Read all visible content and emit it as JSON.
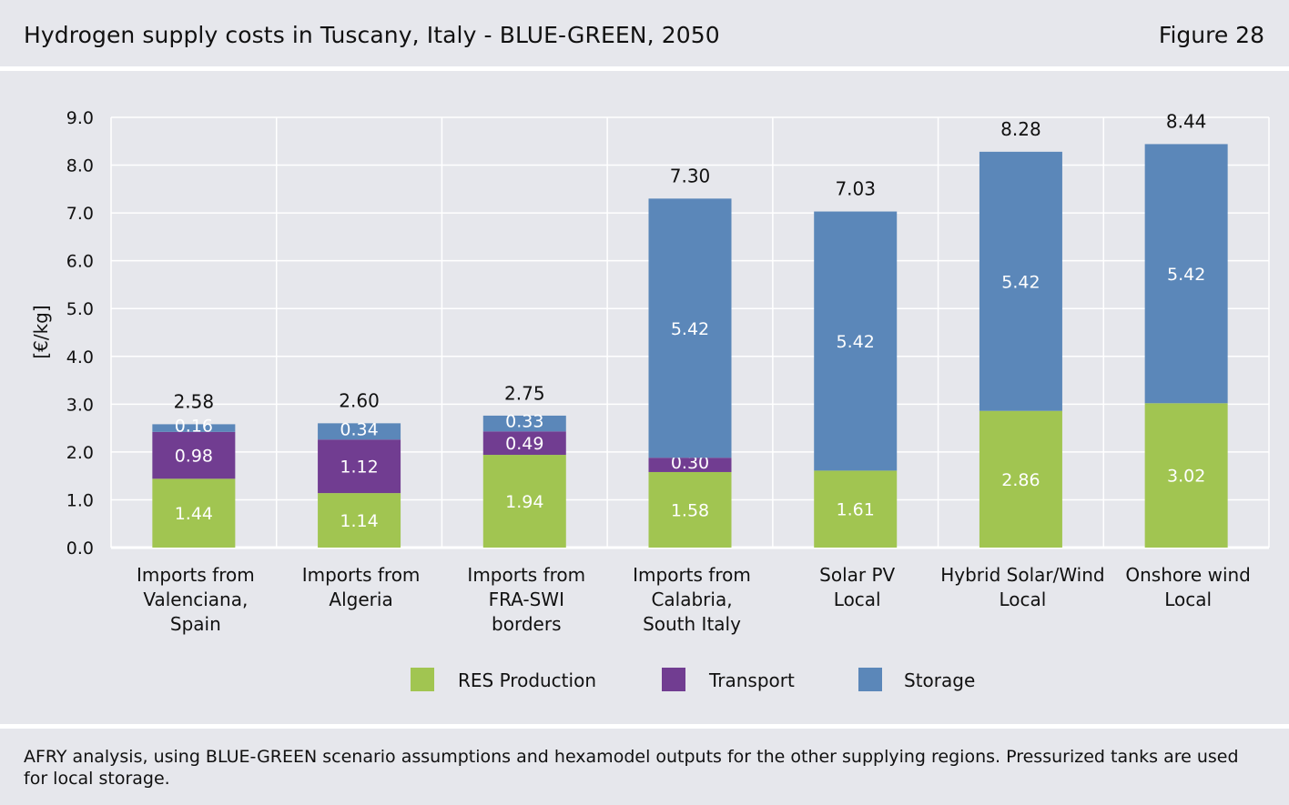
{
  "header": {
    "title": "Hydrogen supply costs in Tuscany, Italy - BLUE-GREEN, 2050",
    "figure_label": "Figure 28"
  },
  "footer": {
    "source": "AFRY analysis, using BLUE-GREEN scenario assumptions and hexamodel outputs for the other supplying regions. Pressurized tanks are used for local storage."
  },
  "colors": {
    "res": "#a1c551",
    "transport": "#713d91",
    "storage": "#5b87b9",
    "background": "#e6e7ec",
    "grid": "#ffffff"
  },
  "chart_data": {
    "type": "bar",
    "stacked": true,
    "ylabel": "[€/kg]",
    "xlabel": "",
    "ylim": [
      0,
      9
    ],
    "yticks": [
      "0.0",
      "1.0",
      "2.0",
      "3.0",
      "4.0",
      "5.0",
      "6.0",
      "7.0",
      "8.0",
      "9.0"
    ],
    "grid": true,
    "legend_position": "bottom",
    "categories": [
      [
        "Imports from",
        "Valenciana,",
        "Spain"
      ],
      [
        "Imports from",
        "Algeria"
      ],
      [
        "Imports from",
        "FRA-SWI",
        "borders"
      ],
      [
        "Imports from",
        "Calabria,",
        "South Italy"
      ],
      [
        "Solar PV",
        "Local"
      ],
      [
        "Hybrid Solar/Wind",
        "Local"
      ],
      [
        "Onshore wind",
        "Local"
      ]
    ],
    "series": [
      {
        "name": "RES Production",
        "color": "#a1c551",
        "values": [
          1.44,
          1.14,
          1.94,
          1.58,
          1.61,
          2.86,
          3.02
        ],
        "labels": [
          "1.44",
          "1.14",
          "1.94",
          "1.58",
          "1.61",
          "2.86",
          "3.02"
        ]
      },
      {
        "name": "Transport",
        "color": "#713d91",
        "values": [
          0.98,
          1.12,
          0.49,
          0.3,
          0,
          0,
          0
        ],
        "labels": [
          "0.98",
          "1.12",
          "0.49",
          "0.30",
          "",
          "",
          ""
        ]
      },
      {
        "name": "Storage",
        "color": "#5b87b9",
        "values": [
          0.16,
          0.34,
          0.33,
          5.42,
          5.42,
          5.42,
          5.42
        ],
        "labels": [
          "0.16",
          "0.34",
          "0.33",
          "5.42",
          "5.42",
          "5.42",
          "5.42"
        ]
      }
    ],
    "totals": [
      2.58,
      2.6,
      2.75,
      7.3,
      7.03,
      8.28,
      8.44
    ],
    "total_labels": [
      "2.58",
      "2.60",
      "2.75",
      "7.30",
      "7.03",
      "8.28",
      "8.44"
    ]
  }
}
